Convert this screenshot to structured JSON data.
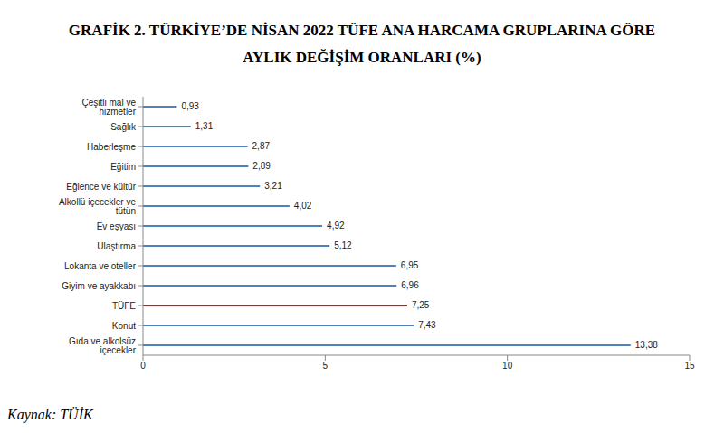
{
  "chart_data": {
    "type": "bar",
    "title": "GRAFİK 2. TÜRKİYE’DE NİSAN 2022 TÜFE ANA HARCAMA GRUPLARINA GÖRE AYLIK DEĞİŞİM ORANLARI (%)",
    "source": "Kaynak: TÜİK",
    "orientation": "horizontal",
    "categories": [
      "Çeşitli mal ve hizmetler",
      "Sağlık",
      "Haberleşme",
      "Eğitim",
      "Eğlence ve kültür",
      "Alkollü içecekler ve tütün",
      "Ev eşyası",
      "Ulaştırma",
      "Lokanta ve oteller",
      "Giyim ve ayakkabı",
      "TÜFE",
      "Konut",
      "Gıda ve alkolsüz içecekler"
    ],
    "values": [
      0.93,
      1.31,
      2.87,
      2.89,
      3.21,
      4.02,
      4.92,
      5.12,
      6.95,
      6.96,
      7.25,
      7.43,
      13.38
    ],
    "value_labels": [
      "0,93",
      "1,31",
      "2,87",
      "2,89",
      "3,21",
      "4,02",
      "4,92",
      "5,12",
      "6,95",
      "6,96",
      "7,25",
      "7,43",
      "13,38"
    ],
    "colors": [
      "#4f81bd",
      "#4f81bd",
      "#4f81bd",
      "#4f81bd",
      "#4f81bd",
      "#4f81bd",
      "#4f81bd",
      "#4f81bd",
      "#4f81bd",
      "#4f81bd",
      "#a52a2a",
      "#4f81bd",
      "#4f81bd"
    ],
    "xlim": [
      0,
      15
    ],
    "xticks": [
      0,
      5,
      10,
      15
    ],
    "grid": false,
    "data_labels": true
  }
}
